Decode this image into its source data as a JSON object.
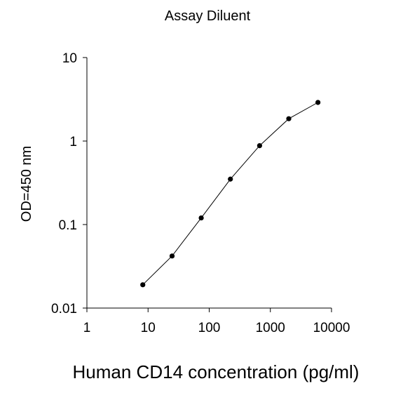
{
  "chart_data": {
    "type": "scatter",
    "title": "Assay Diluent",
    "xlabel": "Human CD14 concentration (pg/ml)",
    "ylabel": "OD=450 nm",
    "x_scale": "log",
    "y_scale": "log",
    "xlim": [
      1,
      10000
    ],
    "ylim": [
      0.01,
      10
    ],
    "x_ticks": [
      1,
      10,
      100,
      1000,
      10000
    ],
    "x_tick_labels": [
      "1",
      "10",
      "100",
      "1000",
      "10000"
    ],
    "y_ticks": [
      0.01,
      0.1,
      1,
      10
    ],
    "y_tick_labels": [
      "0.01",
      "0.1",
      "1",
      "10"
    ],
    "grid": false,
    "series": [
      {
        "x": [
          8.2,
          24.7,
          74,
          222,
          667,
          2000,
          6000
        ],
        "y": [
          0.019,
          0.042,
          0.12,
          0.35,
          0.88,
          1.85,
          2.9
        ],
        "marker": "circle",
        "line": "connected",
        "color": "#000000"
      }
    ]
  }
}
